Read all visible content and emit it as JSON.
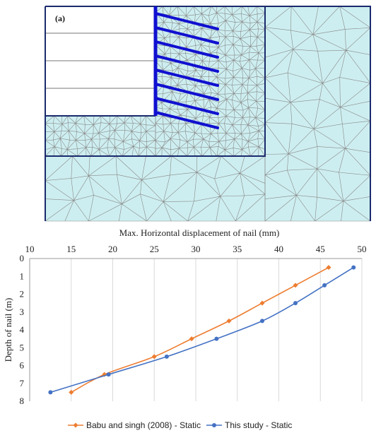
{
  "panel_label": "(a)",
  "colors": {
    "mesh_fill": "#cdeef0",
    "mesh_line": "#8a8a8a",
    "boundary": "#1a2a6c",
    "nail": "#1010d0",
    "series_babu": "#ed7d31",
    "series_this": "#4472c4"
  },
  "chart_data": {
    "type": "line",
    "title": "",
    "xlabel": "Max. Horizontal displacement of nail (mm)",
    "ylabel": "Depth of nail (m)",
    "xlim": [
      10,
      50
    ],
    "ylim": [
      0,
      8
    ],
    "x_ticks": [
      10,
      15,
      20,
      25,
      30,
      35,
      40,
      45,
      50
    ],
    "y_ticks": [
      0,
      1,
      2,
      3,
      4,
      5,
      6,
      7,
      8
    ],
    "x_axis_position": "top",
    "y_inverted": true,
    "grid": "vertical",
    "legend_position": "bottom",
    "series": [
      {
        "name": "Babu and singh (2008) - Static",
        "marker": "diamond",
        "points": [
          [
            46.0,
            0.5
          ],
          [
            42.0,
            1.5
          ],
          [
            38.0,
            2.5
          ],
          [
            34.0,
            3.5
          ],
          [
            29.5,
            4.5
          ],
          [
            25.0,
            5.5
          ],
          [
            19.0,
            6.5
          ],
          [
            15.0,
            7.5
          ]
        ]
      },
      {
        "name": "This study - Static",
        "marker": "circle",
        "points": [
          [
            49.0,
            0.5
          ],
          [
            45.5,
            1.5
          ],
          [
            42.0,
            2.5
          ],
          [
            38.0,
            3.5
          ],
          [
            32.5,
            4.5
          ],
          [
            26.5,
            5.5
          ],
          [
            19.5,
            6.5
          ],
          [
            12.5,
            7.5
          ]
        ]
      }
    ]
  }
}
